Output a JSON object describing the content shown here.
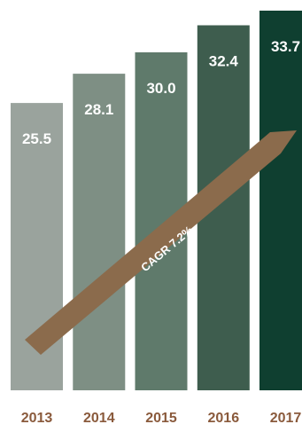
{
  "chart_data": {
    "type": "bar",
    "categories": [
      "2013",
      "2014",
      "2015",
      "2016",
      "2017"
    ],
    "values": [
      25.5,
      28.1,
      30.0,
      32.4,
      33.7
    ],
    "value_labels": [
      "25.5",
      "28.1",
      "30.0",
      "32.4",
      "33.7"
    ],
    "ylim": [
      0,
      33.7
    ],
    "grid": false,
    "legend": "none",
    "bar_colors": [
      "#9aa39d",
      "#7e8f84",
      "#5f7a6b",
      "#3e5d4e",
      "#0f3f30"
    ],
    "tick_label_color": "#8a5a3c",
    "annotation": {
      "text": "CAGR 7.2%",
      "shape": "diagonal arrow",
      "color": "#8b6b4c"
    }
  }
}
